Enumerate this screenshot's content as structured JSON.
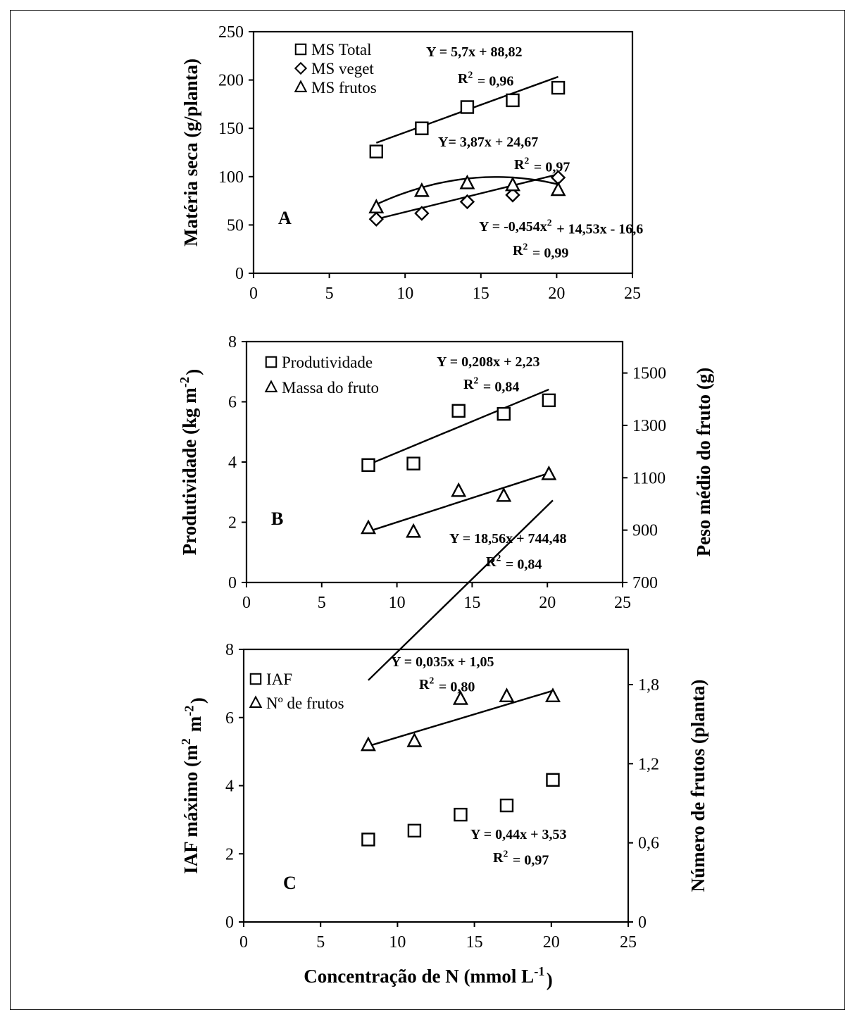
{
  "figure": {
    "xlabel": "Concentração de N (mmol L<sup>-1</sup>)"
  },
  "chart_data": [
    {
      "panel": "A",
      "type": "scatter",
      "xlim": [
        0,
        25
      ],
      "xticks": [
        0,
        5,
        10,
        15,
        20,
        25
      ],
      "ylim": [
        0,
        250
      ],
      "yticks": [
        0,
        50,
        100,
        150,
        200,
        250
      ],
      "ylabel": "Matéria seca (g/planta)",
      "legend_position": "top-left",
      "series": [
        {
          "name": "MS Total",
          "marker": "square",
          "axis": "left",
          "x": [
            8.1,
            11.1,
            14.1,
            17.1,
            20.1
          ],
          "y": [
            126,
            150,
            172,
            179,
            192
          ],
          "fit": {
            "type": "linear",
            "a": 5.7,
            "b": 88.82
          },
          "equation": [
            "Y = 5,7x + 88,82",
            "R<sup>2</sup> = 0,96"
          ]
        },
        {
          "name": "MS veget",
          "marker": "diamond",
          "axis": "left",
          "x": [
            8.1,
            11.1,
            14.1,
            17.1,
            20.1
          ],
          "y": [
            56,
            62,
            74,
            81,
            99
          ],
          "fit": {
            "type": "linear",
            "a": 3.87,
            "b": 24.67
          },
          "equation": [
            "Y= 3,87x + 24,67",
            "R<sup>2</sup> = 0,97"
          ]
        },
        {
          "name": "MS frutos",
          "marker": "triangle",
          "axis": "left",
          "x": [
            8.1,
            11.1,
            14.1,
            17.1,
            20.1
          ],
          "y": [
            68,
            85,
            93,
            91,
            86
          ],
          "fit": {
            "type": "quadratic",
            "a": -0.454,
            "b": 14.53,
            "c": -16.6
          },
          "equation": [
            "Y = -0,454x<sup>2</sup> + 14,53x - 16,6",
            "R<sup>2</sup> = 0,99"
          ]
        }
      ]
    },
    {
      "panel": "B",
      "type": "scatter",
      "xlim": [
        0,
        25
      ],
      "xticks": [
        0,
        5,
        10,
        15,
        20,
        25
      ],
      "ylim": [
        0,
        8
      ],
      "yticks": [
        0,
        2,
        4,
        6,
        8
      ],
      "ylabel": "Produtividade (kg m<sup>-2</sup>)",
      "y2lim": [
        700,
        1620
      ],
      "y2ticks": [
        700,
        900,
        1100,
        1300,
        1500
      ],
      "y2label": "Peso médio do fruto (g)",
      "legend_position": "top-left",
      "series": [
        {
          "name": "Produtividade",
          "marker": "square",
          "axis": "left",
          "x": [
            8.1,
            11.1,
            14.1,
            17.1,
            20.1
          ],
          "y": [
            3.9,
            3.95,
            5.7,
            5.6,
            6.05
          ],
          "fit": {
            "type": "linear",
            "a": 0.208,
            "b": 2.23
          },
          "equation": [
            "Y = 0,208x + 2,23",
            "R<sup>2</sup> = 0,84"
          ]
        },
        {
          "name": "Massa do fruto",
          "marker": "triangle",
          "axis": "right",
          "x": [
            8.1,
            11.1,
            14.1,
            17.1,
            20.1
          ],
          "y": [
            907,
            893,
            1049,
            1030,
            1113
          ],
          "fit": {
            "type": "linear",
            "a": 18.56,
            "b": 744.48
          },
          "equation": [
            "Y = 18,56x + 744,48",
            "R<sup>2</sup> = 0,84"
          ]
        }
      ]
    },
    {
      "panel": "C",
      "type": "scatter",
      "xlim": [
        0,
        25
      ],
      "xticks": [
        0,
        5,
        10,
        15,
        20,
        25
      ],
      "ylim": [
        0,
        8
      ],
      "yticks": [
        0,
        2,
        4,
        6,
        8
      ],
      "ylabel": "IAF máximo (m<sup>2</sup> m<sup>-2</sup>)",
      "y2lim": [
        0,
        2.067
      ],
      "y2ticks": [
        0,
        0.6,
        1.2,
        1.8
      ],
      "y2ticklabels": [
        "0",
        "0,6",
        "1,2",
        "1,8"
      ],
      "y2label": "Número de frutos (planta)",
      "legend_position": "top-left",
      "series": [
        {
          "name": "IAF",
          "marker": "square",
          "axis": "left",
          "x": [
            8.1,
            11.1,
            14.1,
            17.1,
            20.1
          ],
          "y": [
            2.42,
            2.68,
            3.15,
            3.42,
            4.17
          ],
          "fit": {
            "type": "linear",
            "a": 0.44,
            "b": 3.53
          },
          "equation": [
            "Y = 0,44x + 3,53",
            "R<sup>2</sup> = 0,97"
          ]
        },
        {
          "name": "Nº de frutos",
          "marker": "triangle",
          "axis": "right",
          "x": [
            8.1,
            11.1,
            14.1,
            17.1,
            20.1
          ],
          "y": [
            1.34,
            1.37,
            1.69,
            1.71,
            1.71
          ],
          "fit": {
            "type": "linear",
            "a": 0.035,
            "b": 1.05
          },
          "equation": [
            "Y = 0,035x + 1,05",
            "R<sup>2</sup> = 0,80"
          ]
        }
      ]
    }
  ]
}
